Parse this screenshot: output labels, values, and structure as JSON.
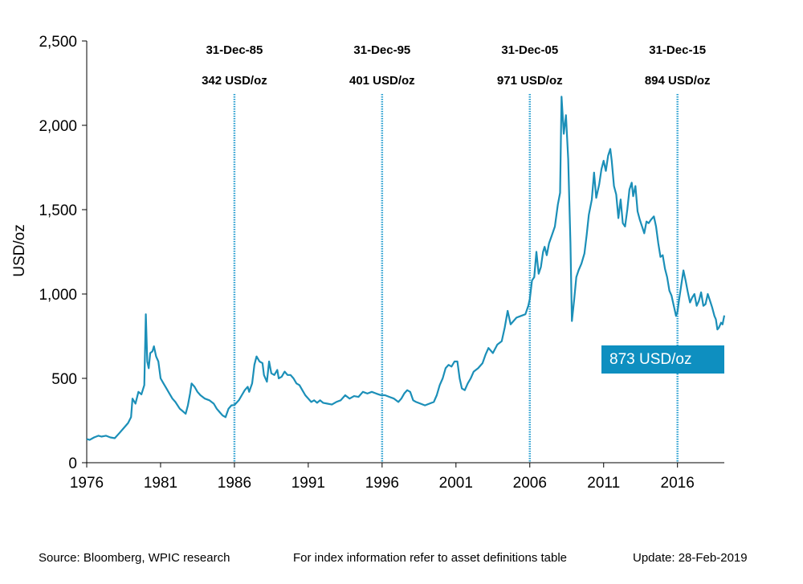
{
  "chart_data": {
    "type": "line",
    "title": "",
    "xlabel": "",
    "ylabel": "USD/oz",
    "xlim": [
      1976,
      2019.17
    ],
    "ylim": [
      0,
      2500
    ],
    "x_ticks": [
      "1976",
      "1981",
      "1986",
      "1991",
      "1996",
      "2001",
      "2006",
      "2011",
      "2016"
    ],
    "y_ticks": [
      "0",
      "500",
      "1,000",
      "1,500",
      "2,000",
      "2,500"
    ],
    "grid": false,
    "line_color": "#1b8fb8",
    "series": [
      {
        "name": "",
        "points": [
          [
            1976.0,
            140
          ],
          [
            1976.2,
            135
          ],
          [
            1976.5,
            150
          ],
          [
            1976.8,
            160
          ],
          [
            1977.0,
            155
          ],
          [
            1977.3,
            160
          ],
          [
            1977.6,
            150
          ],
          [
            1977.9,
            145
          ],
          [
            1978.2,
            175
          ],
          [
            1978.5,
            205
          ],
          [
            1978.8,
            235
          ],
          [
            1979.0,
            270
          ],
          [
            1979.1,
            380
          ],
          [
            1979.3,
            350
          ],
          [
            1979.5,
            420
          ],
          [
            1979.7,
            405
          ],
          [
            1979.9,
            460
          ],
          [
            1980.0,
            880
          ],
          [
            1980.1,
            600
          ],
          [
            1980.2,
            560
          ],
          [
            1980.3,
            650
          ],
          [
            1980.45,
            660
          ],
          [
            1980.55,
            690
          ],
          [
            1980.7,
            630
          ],
          [
            1980.85,
            600
          ],
          [
            1981.0,
            500
          ],
          [
            1981.2,
            470
          ],
          [
            1981.4,
            440
          ],
          [
            1981.6,
            410
          ],
          [
            1981.8,
            380
          ],
          [
            1982.0,
            360
          ],
          [
            1982.3,
            320
          ],
          [
            1982.5,
            305
          ],
          [
            1982.7,
            290
          ],
          [
            1982.85,
            340
          ],
          [
            1983.0,
            410
          ],
          [
            1983.1,
            470
          ],
          [
            1983.3,
            450
          ],
          [
            1983.5,
            420
          ],
          [
            1983.7,
            400
          ],
          [
            1984.0,
            380
          ],
          [
            1984.3,
            370
          ],
          [
            1984.6,
            350
          ],
          [
            1984.8,
            320
          ],
          [
            1985.0,
            300
          ],
          [
            1985.2,
            280
          ],
          [
            1985.4,
            270
          ],
          [
            1985.6,
            320
          ],
          [
            1985.8,
            340
          ],
          [
            1986.0,
            342
          ],
          [
            1986.3,
            370
          ],
          [
            1986.5,
            400
          ],
          [
            1986.7,
            430
          ],
          [
            1986.9,
            450
          ],
          [
            1987.0,
            420
          ],
          [
            1987.2,
            470
          ],
          [
            1987.35,
            580
          ],
          [
            1987.5,
            630
          ],
          [
            1987.7,
            600
          ],
          [
            1987.9,
            590
          ],
          [
            1988.0,
            520
          ],
          [
            1988.2,
            480
          ],
          [
            1988.35,
            600
          ],
          [
            1988.5,
            530
          ],
          [
            1988.7,
            520
          ],
          [
            1988.9,
            550
          ],
          [
            1989.0,
            500
          ],
          [
            1989.2,
            510
          ],
          [
            1989.4,
            540
          ],
          [
            1989.6,
            520
          ],
          [
            1989.8,
            520
          ],
          [
            1990.0,
            500
          ],
          [
            1990.2,
            470
          ],
          [
            1990.4,
            460
          ],
          [
            1990.6,
            430
          ],
          [
            1990.8,
            400
          ],
          [
            1991.0,
            380
          ],
          [
            1991.2,
            360
          ],
          [
            1991.4,
            370
          ],
          [
            1991.6,
            355
          ],
          [
            1991.8,
            370
          ],
          [
            1992.0,
            355
          ],
          [
            1992.3,
            350
          ],
          [
            1992.6,
            345
          ],
          [
            1992.9,
            360
          ],
          [
            1993.2,
            370
          ],
          [
            1993.5,
            400
          ],
          [
            1993.8,
            380
          ],
          [
            1994.1,
            395
          ],
          [
            1994.4,
            390
          ],
          [
            1994.7,
            420
          ],
          [
            1995.0,
            410
          ],
          [
            1995.3,
            420
          ],
          [
            1995.6,
            410
          ],
          [
            1995.9,
            401
          ],
          [
            1996.2,
            400
          ],
          [
            1996.5,
            390
          ],
          [
            1996.8,
            380
          ],
          [
            1997.1,
            360
          ],
          [
            1997.3,
            380
          ],
          [
            1997.5,
            410
          ],
          [
            1997.7,
            430
          ],
          [
            1997.9,
            420
          ],
          [
            1998.1,
            370
          ],
          [
            1998.3,
            360
          ],
          [
            1998.6,
            350
          ],
          [
            1998.9,
            340
          ],
          [
            1999.2,
            350
          ],
          [
            1999.5,
            360
          ],
          [
            1999.7,
            400
          ],
          [
            1999.9,
            460
          ],
          [
            2000.1,
            500
          ],
          [
            2000.3,
            560
          ],
          [
            2000.5,
            580
          ],
          [
            2000.7,
            570
          ],
          [
            2000.9,
            600
          ],
          [
            2001.1,
            600
          ],
          [
            2001.25,
            500
          ],
          [
            2001.4,
            440
          ],
          [
            2001.6,
            430
          ],
          [
            2001.8,
            470
          ],
          [
            2002.0,
            500
          ],
          [
            2002.2,
            540
          ],
          [
            2002.5,
            560
          ],
          [
            2002.8,
            590
          ],
          [
            2003.0,
            640
          ],
          [
            2003.2,
            680
          ],
          [
            2003.5,
            650
          ],
          [
            2003.8,
            700
          ],
          [
            2004.1,
            720
          ],
          [
            2004.3,
            800
          ],
          [
            2004.5,
            900
          ],
          [
            2004.7,
            820
          ],
          [
            2004.9,
            840
          ],
          [
            2005.1,
            860
          ],
          [
            2005.4,
            870
          ],
          [
            2005.7,
            880
          ],
          [
            2005.9,
            930
          ],
          [
            2006.0,
            971
          ],
          [
            2006.15,
            1080
          ],
          [
            2006.3,
            1100
          ],
          [
            2006.45,
            1250
          ],
          [
            2006.6,
            1120
          ],
          [
            2006.75,
            1160
          ],
          [
            2006.9,
            1250
          ],
          [
            2007.0,
            1280
          ],
          [
            2007.15,
            1230
          ],
          [
            2007.3,
            1300
          ],
          [
            2007.5,
            1350
          ],
          [
            2007.7,
            1400
          ],
          [
            2007.9,
            1530
          ],
          [
            2008.05,
            1600
          ],
          [
            2008.15,
            2170
          ],
          [
            2008.3,
            1950
          ],
          [
            2008.45,
            2060
          ],
          [
            2008.6,
            1800
          ],
          [
            2008.75,
            1300
          ],
          [
            2008.85,
            840
          ],
          [
            2009.0,
            960
          ],
          [
            2009.15,
            1100
          ],
          [
            2009.3,
            1140
          ],
          [
            2009.5,
            1180
          ],
          [
            2009.7,
            1240
          ],
          [
            2009.85,
            1350
          ],
          [
            2010.0,
            1470
          ],
          [
            2010.2,
            1560
          ],
          [
            2010.35,
            1720
          ],
          [
            2010.5,
            1570
          ],
          [
            2010.7,
            1650
          ],
          [
            2010.85,
            1740
          ],
          [
            2011.0,
            1790
          ],
          [
            2011.15,
            1730
          ],
          [
            2011.3,
            1820
          ],
          [
            2011.45,
            1860
          ],
          [
            2011.55,
            1790
          ],
          [
            2011.7,
            1640
          ],
          [
            2011.85,
            1590
          ],
          [
            2012.0,
            1450
          ],
          [
            2012.15,
            1560
          ],
          [
            2012.3,
            1420
          ],
          [
            2012.45,
            1400
          ],
          [
            2012.6,
            1500
          ],
          [
            2012.75,
            1620
          ],
          [
            2012.9,
            1660
          ],
          [
            2013.0,
            1580
          ],
          [
            2013.15,
            1640
          ],
          [
            2013.3,
            1490
          ],
          [
            2013.45,
            1440
          ],
          [
            2013.6,
            1400
          ],
          [
            2013.75,
            1360
          ],
          [
            2013.9,
            1430
          ],
          [
            2014.05,
            1420
          ],
          [
            2014.2,
            1440
          ],
          [
            2014.4,
            1460
          ],
          [
            2014.55,
            1400
          ],
          [
            2014.7,
            1300
          ],
          [
            2014.85,
            1220
          ],
          [
            2015.0,
            1230
          ],
          [
            2015.15,
            1150
          ],
          [
            2015.3,
            1100
          ],
          [
            2015.45,
            1020
          ],
          [
            2015.6,
            990
          ],
          [
            2015.75,
            930
          ],
          [
            2015.9,
            870
          ],
          [
            2016.0,
            894
          ],
          [
            2016.1,
            960
          ],
          [
            2016.25,
            1050
          ],
          [
            2016.4,
            1140
          ],
          [
            2016.55,
            1080
          ],
          [
            2016.7,
            1010
          ],
          [
            2016.85,
            950
          ],
          [
            2017.0,
            980
          ],
          [
            2017.15,
            1000
          ],
          [
            2017.3,
            930
          ],
          [
            2017.45,
            960
          ],
          [
            2017.6,
            1010
          ],
          [
            2017.75,
            930
          ],
          [
            2017.9,
            940
          ],
          [
            2018.05,
            1000
          ],
          [
            2018.2,
            960
          ],
          [
            2018.35,
            920
          ],
          [
            2018.5,
            870
          ],
          [
            2018.6,
            850
          ],
          [
            2018.7,
            790
          ],
          [
            2018.8,
            800
          ],
          [
            2018.95,
            830
          ],
          [
            2019.05,
            820
          ],
          [
            2019.17,
            873
          ]
        ]
      }
    ],
    "annotations": [
      {
        "x": 1986.0,
        "date": "31-Dec-85",
        "price": "342 USD/oz"
      },
      {
        "x": 1996.0,
        "date": "31-Dec-95",
        "price": "401 USD/oz"
      },
      {
        "x": 2006.0,
        "date": "31-Dec-05",
        "price": "971 USD/oz"
      },
      {
        "x": 2016.0,
        "date": "31-Dec-15",
        "price": "894 USD/oz"
      }
    ],
    "callout": "873 USD/oz",
    "callout_color": "#0e8fc0",
    "annotation_line_color": "#2a9fd0"
  },
  "footer": {
    "source": "Source: Bloomberg, WPIC research",
    "note": "For index information refer to asset definitions table",
    "update": "Update: 28-Feb-2019"
  }
}
